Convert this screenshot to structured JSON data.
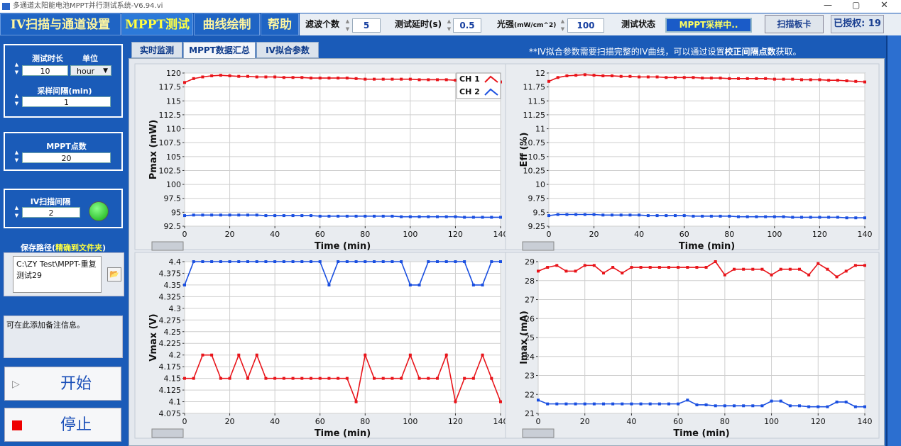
{
  "window": {
    "title": "多通道太阳能电池MPPT并行测试系统-V6.94.vi"
  },
  "tabs": [
    "IV扫描与通道设置",
    "MPPT测试",
    "曲线绘制",
    "帮助"
  ],
  "toolbar": {
    "filter_label": "滤波个数",
    "filter_value": 5,
    "delay_label": "测试延时(s)",
    "delay_value": 0.5,
    "light_label": "光强",
    "light_unit": "(mW/cm^2)",
    "light_value": 100,
    "status_label": "测试状态",
    "status_value": "MPPT采样中..",
    "scan_button": "扫描板卡",
    "license": "已授权: 19"
  },
  "subtabs": [
    "实时监测",
    "MPPT数据汇总",
    "IV拟合参数"
  ],
  "note": {
    "prefix": "**IV拟合参数需要扫描完整的IV曲线，可以通过设置",
    "emphasis": "校正间隔点数",
    "suffix": "获取。"
  },
  "left_panel": {
    "duration_label": "测试时长",
    "duration_value": 10,
    "unit_label": "单位",
    "unit_value": "hour",
    "interval_label": "采样间隔(min)",
    "interval_value": 1,
    "mppt_points_label": "MPPT点数",
    "mppt_points_value": 20,
    "iv_interval_label": "IV扫描间隔",
    "iv_interval_value": 2,
    "save_path_label": "保存路径(",
    "save_path_hint": "精确到文件夹",
    "save_path_close": ")",
    "save_path_value": "C:\\ZY Test\\MPPT-重复测试29",
    "remark": "可在此添加备注信息。",
    "start_button": "开始",
    "stop_button": "停止"
  },
  "chart_data": [
    {
      "type": "line",
      "y_label": "Pmax (mW)",
      "x_label": "Time (min)",
      "grid": true,
      "legend": "upper right",
      "x": [
        0,
        4,
        8,
        12,
        16,
        20,
        24,
        28,
        32,
        36,
        40,
        44,
        48,
        52,
        56,
        60,
        64,
        68,
        72,
        76,
        80,
        84,
        88,
        92,
        96,
        100,
        104,
        108,
        112,
        116,
        120,
        124,
        128,
        132,
        136,
        140
      ],
      "xlim": [
        0,
        140
      ],
      "xticks": [
        0,
        20,
        40,
        60,
        80,
        100,
        120,
        140
      ],
      "ylim": [
        92.5,
        120
      ],
      "yticks": [
        92.5,
        95,
        97.5,
        100,
        102.5,
        105,
        107.5,
        110,
        112.5,
        115,
        117.5,
        120
      ],
      "series": [
        {
          "name": "CH 1",
          "color": "#e8141a",
          "values": [
            118.3,
            119.0,
            119.3,
            119.5,
            119.6,
            119.5,
            119.4,
            119.4,
            119.3,
            119.3,
            119.3,
            119.2,
            119.2,
            119.2,
            119.1,
            119.1,
            119.1,
            119.1,
            119.1,
            119.0,
            118.9,
            118.9,
            118.9,
            118.9,
            118.9,
            118.9,
            118.8,
            118.8,
            118.8,
            118.8,
            118.7,
            118.7,
            118.6,
            118.6,
            118.5,
            118.4
          ]
        },
        {
          "name": "CH 2",
          "color": "#1a4fe0",
          "values": [
            94.4,
            94.5,
            94.5,
            94.5,
            94.5,
            94.5,
            94.5,
            94.5,
            94.5,
            94.4,
            94.4,
            94.4,
            94.4,
            94.4,
            94.4,
            94.3,
            94.3,
            94.3,
            94.3,
            94.3,
            94.3,
            94.3,
            94.3,
            94.3,
            94.2,
            94.2,
            94.2,
            94.2,
            94.2,
            94.2,
            94.2,
            94.1,
            94.1,
            94.1,
            94.1,
            94.1
          ]
        }
      ]
    },
    {
      "type": "line",
      "y_label": "Eff (%)",
      "x_label": "Time (min)",
      "grid": true,
      "x": [
        0,
        4,
        8,
        12,
        16,
        20,
        24,
        28,
        32,
        36,
        40,
        44,
        48,
        52,
        56,
        60,
        64,
        68,
        72,
        76,
        80,
        84,
        88,
        92,
        96,
        100,
        104,
        108,
        112,
        116,
        120,
        124,
        128,
        132,
        136,
        140
      ],
      "xlim": [
        0,
        140
      ],
      "xticks": [
        0,
        20,
        40,
        60,
        80,
        100,
        120,
        140
      ],
      "ylim": [
        9.25,
        12
      ],
      "yticks": [
        9.25,
        9.5,
        9.75,
        10,
        10.25,
        10.5,
        10.75,
        11,
        11.25,
        11.5,
        11.75,
        12
      ],
      "series": [
        {
          "color": "#e8141a",
          "values": [
            11.85,
            11.92,
            11.95,
            11.96,
            11.97,
            11.96,
            11.95,
            11.95,
            11.94,
            11.94,
            11.93,
            11.93,
            11.93,
            11.92,
            11.92,
            11.92,
            11.92,
            11.91,
            11.91,
            11.91,
            11.9,
            11.9,
            11.9,
            11.9,
            11.9,
            11.89,
            11.89,
            11.89,
            11.88,
            11.88,
            11.88,
            11.87,
            11.87,
            11.86,
            11.85,
            11.84
          ]
        },
        {
          "color": "#1a4fe0",
          "values": [
            9.44,
            9.46,
            9.46,
            9.46,
            9.46,
            9.46,
            9.45,
            9.45,
            9.45,
            9.45,
            9.45,
            9.44,
            9.44,
            9.44,
            9.44,
            9.44,
            9.43,
            9.43,
            9.43,
            9.43,
            9.43,
            9.42,
            9.42,
            9.42,
            9.42,
            9.42,
            9.42,
            9.41,
            9.41,
            9.41,
            9.41,
            9.41,
            9.41,
            9.4,
            9.4,
            9.4
          ]
        }
      ]
    },
    {
      "type": "line",
      "y_label": "Vmax (V)",
      "x_label": "Time (min)",
      "grid": true,
      "x": [
        0,
        4,
        8,
        12,
        16,
        20,
        24,
        28,
        32,
        36,
        40,
        44,
        48,
        52,
        56,
        60,
        64,
        68,
        72,
        76,
        80,
        84,
        88,
        92,
        96,
        100,
        104,
        108,
        112,
        116,
        120,
        124,
        128,
        132,
        136,
        140
      ],
      "xlim": [
        0,
        140
      ],
      "xticks": [
        0,
        20,
        40,
        60,
        80,
        100,
        120,
        140
      ],
      "ylim": [
        4.075,
        4.4
      ],
      "yticks": [
        4.075,
        4.1,
        4.125,
        4.15,
        4.175,
        4.2,
        4.225,
        4.25,
        4.275,
        4.3,
        4.325,
        4.35,
        4.375,
        4.4
      ],
      "series": [
        {
          "color": "#e8141a",
          "values": [
            4.15,
            4.15,
            4.2,
            4.2,
            4.15,
            4.15,
            4.2,
            4.15,
            4.2,
            4.15,
            4.15,
            4.15,
            4.15,
            4.15,
            4.15,
            4.15,
            4.15,
            4.15,
            4.15,
            4.1,
            4.2,
            4.15,
            4.15,
            4.15,
            4.15,
            4.2,
            4.15,
            4.15,
            4.15,
            4.2,
            4.1,
            4.15,
            4.15,
            4.2,
            4.15,
            4.1
          ]
        },
        {
          "color": "#1a4fe0",
          "values": [
            4.35,
            4.4,
            4.4,
            4.4,
            4.4,
            4.4,
            4.4,
            4.4,
            4.4,
            4.4,
            4.4,
            4.4,
            4.4,
            4.4,
            4.4,
            4.4,
            4.35,
            4.4,
            4.4,
            4.4,
            4.4,
            4.4,
            4.4,
            4.4,
            4.4,
            4.35,
            4.35,
            4.4,
            4.4,
            4.4,
            4.4,
            4.4,
            4.35,
            4.35,
            4.4,
            4.4
          ]
        }
      ]
    },
    {
      "type": "line",
      "y_label": "Imax (mA)",
      "x_label": "Time (min)",
      "grid": true,
      "x": [
        0,
        4,
        8,
        12,
        16,
        20,
        24,
        28,
        32,
        36,
        40,
        44,
        48,
        52,
        56,
        60,
        64,
        68,
        72,
        76,
        80,
        84,
        88,
        92,
        96,
        100,
        104,
        108,
        112,
        116,
        120,
        124,
        128,
        132,
        136,
        140
      ],
      "xlim": [
        0,
        140
      ],
      "xticks": [
        0,
        20,
        40,
        60,
        80,
        100,
        120,
        140
      ],
      "ylim": [
        21,
        29
      ],
      "yticks": [
        21,
        22,
        23,
        24,
        25,
        26,
        27,
        28,
        29
      ],
      "series": [
        {
          "color": "#e8141a",
          "values": [
            28.5,
            28.7,
            28.8,
            28.5,
            28.5,
            28.8,
            28.8,
            28.4,
            28.7,
            28.4,
            28.7,
            28.7,
            28.7,
            28.7,
            28.7,
            28.7,
            28.7,
            28.7,
            28.7,
            29.0,
            28.3,
            28.6,
            28.6,
            28.6,
            28.6,
            28.3,
            28.6,
            28.6,
            28.6,
            28.3,
            28.9,
            28.6,
            28.2,
            28.5,
            28.8,
            28.8
          ]
        },
        {
          "color": "#1a4fe0",
          "values": [
            21.7,
            21.5,
            21.5,
            21.5,
            21.5,
            21.5,
            21.5,
            21.5,
            21.5,
            21.5,
            21.5,
            21.5,
            21.5,
            21.5,
            21.5,
            21.5,
            21.7,
            21.45,
            21.45,
            21.4,
            21.4,
            21.4,
            21.4,
            21.4,
            21.4,
            21.65,
            21.65,
            21.4,
            21.4,
            21.35,
            21.35,
            21.35,
            21.6,
            21.6,
            21.35,
            21.35
          ]
        }
      ]
    }
  ]
}
